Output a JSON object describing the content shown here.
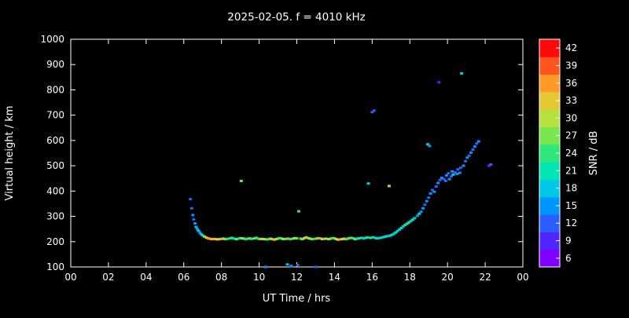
{
  "title": "2025-02-05. f = 4010 kHz",
  "chart_data": {
    "type": "scatter",
    "title": "2025-02-05. f = 4010 kHz",
    "xlabel": "UT Time / hrs",
    "ylabel": "Virtual height / km",
    "xlim": [
      0,
      24
    ],
    "ylim": [
      100,
      1000
    ],
    "x_tick_values": [
      0,
      2,
      4,
      6,
      8,
      10,
      12,
      14,
      16,
      18,
      20,
      22,
      24
    ],
    "x_tick_labels": [
      "00",
      "02",
      "04",
      "06",
      "08",
      "10",
      "12",
      "14",
      "16",
      "18",
      "20",
      "22",
      "00"
    ],
    "y_tick_values": [
      100,
      200,
      300,
      400,
      500,
      600,
      700,
      800,
      900,
      1000
    ],
    "background_color": "#000000",
    "axis_color": "#ffffff",
    "colorbar": {
      "label": "SNR / dB",
      "min": 4.5,
      "max": 43.5,
      "tick_values": [
        6,
        9,
        12,
        15,
        18,
        21,
        24,
        27,
        30,
        33,
        36,
        39,
        42
      ],
      "band_colors": [
        "#8000ff",
        "#5026ff",
        "#2d5cff",
        "#0096ff",
        "#00c8e6",
        "#00e6b4",
        "#2ee67a",
        "#78e650",
        "#b4e13c",
        "#e6c832",
        "#ff9a28",
        "#ff541e",
        "#ff0a0a"
      ]
    },
    "points_format": "[ut_hours, virtual_height_km, snr_db]",
    "points": [
      [
        6.35,
        368,
        12
      ],
      [
        6.42,
        332,
        12
      ],
      [
        6.48,
        305,
        15
      ],
      [
        6.53,
        288,
        12
      ],
      [
        6.6,
        272,
        15
      ],
      [
        6.65,
        258,
        18
      ],
      [
        6.72,
        250,
        15
      ],
      [
        6.78,
        243,
        18
      ],
      [
        6.85,
        236,
        15
      ],
      [
        6.92,
        230,
        18
      ],
      [
        7.0,
        225,
        21
      ],
      [
        7.1,
        220,
        27
      ],
      [
        7.2,
        216,
        33
      ],
      [
        7.3,
        213,
        36
      ],
      [
        7.4,
        211,
        36
      ],
      [
        7.5,
        210,
        33
      ],
      [
        7.6,
        211,
        36
      ],
      [
        7.7,
        210,
        33
      ],
      [
        7.8,
        209,
        30
      ],
      [
        7.9,
        210,
        33
      ],
      [
        8.0,
        211,
        36
      ],
      [
        8.1,
        212,
        30
      ],
      [
        8.2,
        210,
        27
      ],
      [
        8.3,
        211,
        24
      ],
      [
        8.45,
        213,
        21
      ],
      [
        8.55,
        215,
        24
      ],
      [
        8.65,
        212,
        21
      ],
      [
        8.8,
        210,
        27
      ],
      [
        8.9,
        212,
        21
      ],
      [
        9.0,
        214,
        24
      ],
      [
        9.05,
        440,
        27
      ],
      [
        9.1,
        213,
        30
      ],
      [
        9.2,
        212,
        27
      ],
      [
        9.3,
        210,
        21
      ],
      [
        9.4,
        212,
        24
      ],
      [
        9.5,
        213,
        27
      ],
      [
        9.6,
        211,
        24
      ],
      [
        9.75,
        213,
        27
      ],
      [
        9.85,
        215,
        24
      ],
      [
        9.95,
        212,
        21
      ],
      [
        10.05,
        210,
        27
      ],
      [
        10.15,
        211,
        33
      ],
      [
        10.25,
        210,
        30
      ],
      [
        10.35,
        100,
        15
      ],
      [
        10.4,
        209,
        27
      ],
      [
        10.5,
        210,
        24
      ],
      [
        10.6,
        212,
        27
      ],
      [
        10.7,
        210,
        33
      ],
      [
        10.8,
        208,
        36
      ],
      [
        10.9,
        210,
        30
      ],
      [
        11.0,
        212,
        27
      ],
      [
        11.1,
        214,
        24
      ],
      [
        11.2,
        212,
        27
      ],
      [
        11.3,
        210,
        30
      ],
      [
        11.4,
        211,
        27
      ],
      [
        11.5,
        110,
        18
      ],
      [
        11.55,
        212,
        27
      ],
      [
        11.65,
        210,
        24
      ],
      [
        11.7,
        104,
        15
      ],
      [
        11.8,
        212,
        27
      ],
      [
        11.9,
        214,
        30
      ],
      [
        12.0,
        213,
        27
      ],
      [
        12.05,
        108,
        12
      ],
      [
        12.1,
        320,
        24
      ],
      [
        12.2,
        212,
        24
      ],
      [
        12.3,
        210,
        27
      ],
      [
        12.4,
        214,
        33
      ],
      [
        12.5,
        217,
        30
      ],
      [
        12.6,
        214,
        27
      ],
      [
        12.7,
        212,
        30
      ],
      [
        12.8,
        210,
        27
      ],
      [
        12.9,
        211,
        24
      ],
      [
        13.0,
        100,
        12
      ],
      [
        13.05,
        212,
        27
      ],
      [
        13.15,
        214,
        27
      ],
      [
        13.25,
        213,
        36
      ],
      [
        13.35,
        210,
        33
      ],
      [
        13.45,
        211,
        27
      ],
      [
        13.55,
        212,
        30
      ],
      [
        13.7,
        210,
        30
      ],
      [
        13.8,
        212,
        27
      ],
      [
        13.9,
        214,
        24
      ],
      [
        14.0,
        213,
        27
      ],
      [
        14.1,
        210,
        30
      ],
      [
        14.2,
        208,
        33
      ],
      [
        14.3,
        209,
        36
      ],
      [
        14.4,
        210,
        33
      ],
      [
        14.5,
        212,
        33
      ],
      [
        14.6,
        210,
        27
      ],
      [
        14.7,
        212,
        24
      ],
      [
        14.8,
        214,
        27
      ],
      [
        14.9,
        215,
        24
      ],
      [
        15.0,
        213,
        24
      ],
      [
        15.1,
        210,
        27
      ],
      [
        15.2,
        212,
        21
      ],
      [
        15.3,
        213,
        24
      ],
      [
        15.45,
        215,
        21
      ],
      [
        15.55,
        213,
        18
      ],
      [
        15.65,
        215,
        21
      ],
      [
        15.75,
        217,
        21
      ],
      [
        15.8,
        430,
        18
      ],
      [
        15.9,
        215,
        24
      ],
      [
        16.0,
        712,
        12
      ],
      [
        16.05,
        217,
        21
      ],
      [
        16.1,
        718,
        12
      ],
      [
        16.15,
        215,
        18
      ],
      [
        16.25,
        213,
        21
      ],
      [
        16.35,
        214,
        18
      ],
      [
        16.45,
        215,
        21
      ],
      [
        16.55,
        217,
        18
      ],
      [
        16.65,
        219,
        18
      ],
      [
        16.75,
        221,
        21
      ],
      [
        16.85,
        222,
        18
      ],
      [
        16.9,
        420,
        30
      ],
      [
        16.95,
        224,
        18
      ],
      [
        17.05,
        227,
        21
      ],
      [
        17.15,
        231,
        18
      ],
      [
        17.25,
        236,
        21
      ],
      [
        17.35,
        242,
        18
      ],
      [
        17.45,
        248,
        18
      ],
      [
        17.55,
        254,
        21
      ],
      [
        17.65,
        260,
        18
      ],
      [
        17.75,
        266,
        21
      ],
      [
        17.85,
        271,
        24
      ],
      [
        17.95,
        276,
        21
      ],
      [
        18.05,
        281,
        18
      ],
      [
        18.15,
        287,
        21
      ],
      [
        18.25,
        293,
        18
      ],
      [
        18.4,
        302,
        15
      ],
      [
        18.5,
        310,
        18
      ],
      [
        18.6,
        318,
        15
      ],
      [
        18.7,
        332,
        15
      ],
      [
        18.8,
        346,
        12
      ],
      [
        18.9,
        360,
        15
      ],
      [
        18.95,
        585,
        18
      ],
      [
        19.0,
        374,
        12
      ],
      [
        19.05,
        578,
        15
      ],
      [
        19.1,
        390,
        15
      ],
      [
        19.2,
        404,
        12
      ],
      [
        19.3,
        397,
        15
      ],
      [
        19.4,
        418,
        12
      ],
      [
        19.5,
        432,
        15
      ],
      [
        19.55,
        830,
        9
      ],
      [
        19.6,
        444,
        12
      ],
      [
        19.7,
        452,
        15
      ],
      [
        19.8,
        448,
        12
      ],
      [
        19.9,
        440,
        12
      ],
      [
        19.95,
        462,
        15
      ],
      [
        20.05,
        470,
        12
      ],
      [
        20.1,
        447,
        15
      ],
      [
        20.2,
        458,
        12
      ],
      [
        20.25,
        478,
        15
      ],
      [
        20.3,
        465,
        18
      ],
      [
        20.4,
        474,
        12
      ],
      [
        20.5,
        468,
        15
      ],
      [
        20.55,
        486,
        12
      ],
      [
        20.65,
        472,
        15
      ],
      [
        20.7,
        492,
        12
      ],
      [
        20.75,
        865,
        18
      ],
      [
        20.85,
        500,
        15
      ],
      [
        20.95,
        518,
        12
      ],
      [
        21.05,
        532,
        15
      ],
      [
        21.15,
        540,
        12
      ],
      [
        21.25,
        552,
        15
      ],
      [
        21.35,
        564,
        12
      ],
      [
        21.45,
        576,
        15
      ],
      [
        21.55,
        588,
        12
      ],
      [
        21.65,
        596,
        15
      ],
      [
        22.2,
        500,
        9
      ],
      [
        22.3,
        505,
        12
      ]
    ]
  }
}
